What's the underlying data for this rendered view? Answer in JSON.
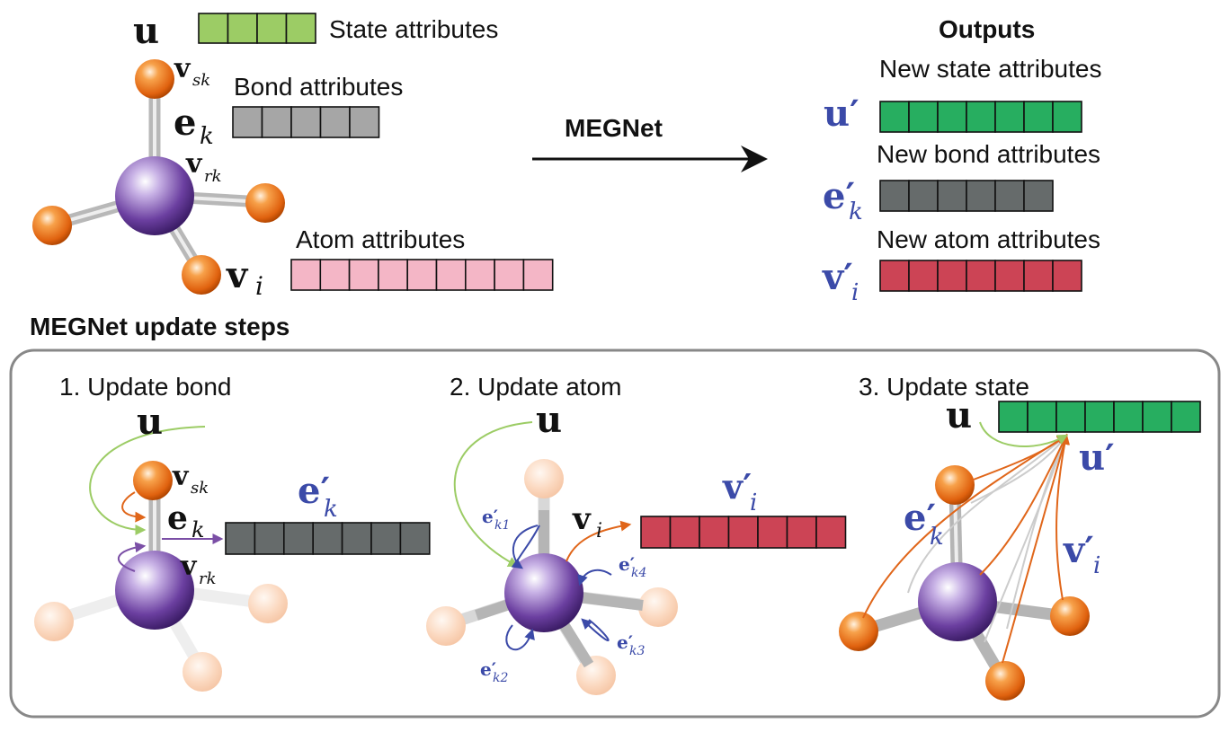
{
  "colors": {
    "state": "#9ccc65",
    "bond": "#a6a6a6",
    "atom": "#f4b6c6",
    "new_state": "#27ae60",
    "new_bond": "#666b6b",
    "new_atom": "#cc4455",
    "math_blue": "#3b4aa8",
    "arrow_orange": "#e0661a",
    "arrow_green": "#9ccc65",
    "arrow_purple": "#7b4fa6",
    "center_atom": "#7a4fb0",
    "ligand_atom": "#e8741a"
  },
  "top": {
    "state_symbol": "u",
    "state_label": "State attributes",
    "bond_sender_symbol": "v",
    "bond_sender_sub": "sk",
    "bond_label": "Bond attributes",
    "bond_symbol": "e",
    "bond_sub": "k",
    "bond_receiver_symbol": "v",
    "bond_receiver_sub": "rk",
    "atom_label": "Atom attributes",
    "atom_symbol": "v",
    "atom_sub": "i",
    "arrow_label": "MEGNet"
  },
  "outputs": {
    "title": "Outputs",
    "new_state_label": "New state attributes",
    "new_state_symbol": "u′",
    "new_bond_label": "New bond attributes",
    "new_bond_symbol": "e′",
    "new_bond_sub": "k",
    "new_atom_label": "New atom attributes",
    "new_atom_symbol": "v′",
    "new_atom_sub": "i"
  },
  "steps": {
    "title": "MEGNet update steps",
    "step1": {
      "title": "1. Update bond",
      "u_symbol": "u",
      "vs_symbol": "v",
      "vs_sub": "sk",
      "e_symbol": "e",
      "e_sub": "k",
      "vr_symbol": "v",
      "vr_sub": "rk",
      "out_symbol": "e′",
      "out_sub": "k"
    },
    "step2": {
      "title": "2. Update atom",
      "u_symbol": "u",
      "v_symbol": "v",
      "v_sub": "i",
      "out_symbol": "v′",
      "out_sub": "i",
      "e_k1": "e′",
      "e_k1_sub": "k1",
      "e_k2": "e′",
      "e_k2_sub": "k2",
      "e_k3": "e′",
      "e_k3_sub": "k3",
      "e_k4": "e′",
      "e_k4_sub": "k4"
    },
    "step3": {
      "title": "3. Update state",
      "u_symbol": "u",
      "out_symbol": "u′",
      "e_symbol": "e′",
      "e_sub": "k",
      "v_symbol": "v′",
      "v_sub": "i"
    }
  }
}
